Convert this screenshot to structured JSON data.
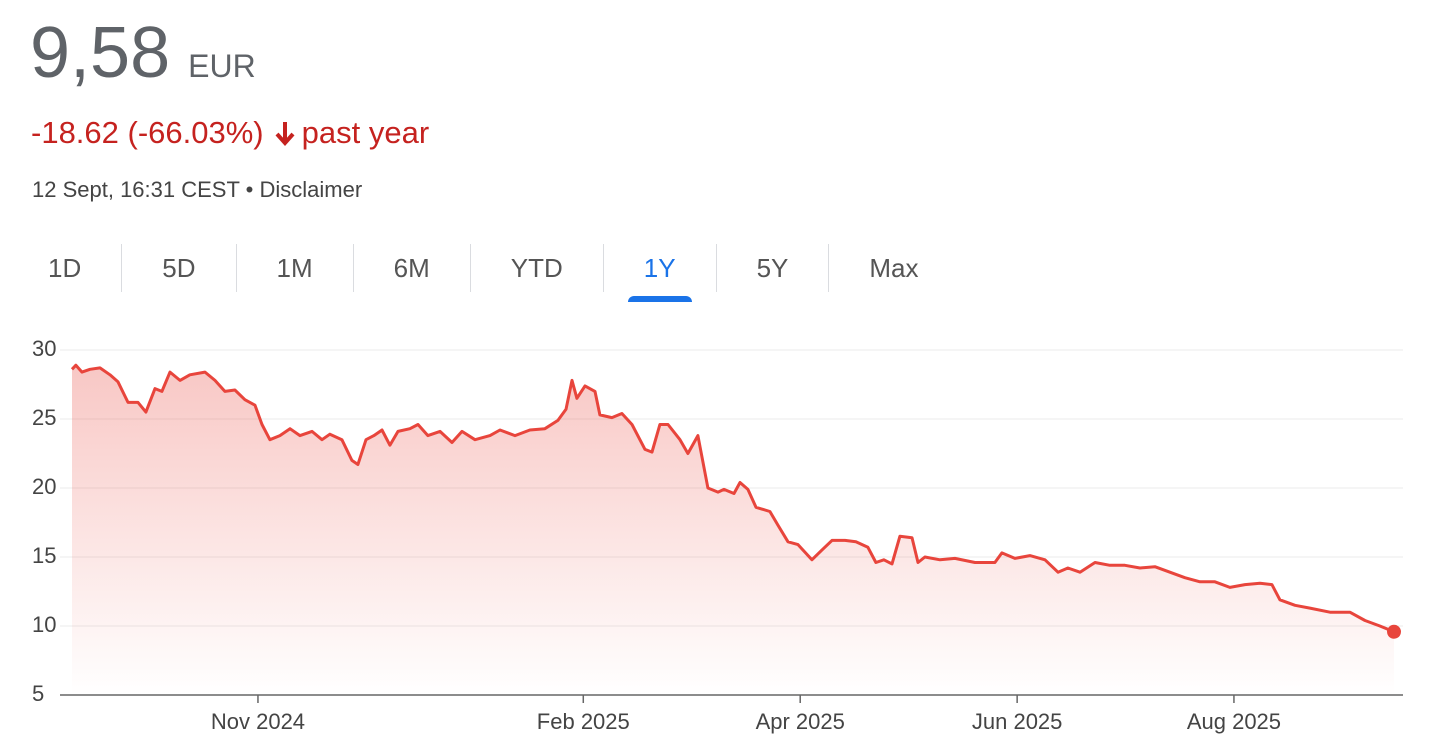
{
  "header": {
    "price": "9,58",
    "currency": "EUR",
    "change": "-18.62 (-66.03%)",
    "period": "past year",
    "timestamp": "12 Sept, 16:31 CEST",
    "separator": "•",
    "disclaimer": "Disclaimer"
  },
  "tabs": [
    {
      "label": "1D"
    },
    {
      "label": "5D"
    },
    {
      "label": "1M"
    },
    {
      "label": "6M"
    },
    {
      "label": "YTD"
    },
    {
      "label": "1Y",
      "selected": true
    },
    {
      "label": "5Y"
    },
    {
      "label": "Max"
    }
  ],
  "chart_data": {
    "type": "line",
    "color": "#e8453c",
    "grid": true,
    "x": [
      2024.6904,
      2024.6934,
      2024.6981,
      2024.7042,
      2024.7119,
      2024.7196,
      2024.7257,
      2024.7334,
      2024.7411,
      2024.7472,
      2024.7542,
      2024.7595,
      2024.7657,
      2024.7734,
      2024.781,
      2024.7926,
      2024.8003,
      2024.8079,
      2024.8156,
      2024.8233,
      2024.831,
      2024.8364,
      2024.8425,
      2024.8502,
      2024.8579,
      2024.8656,
      2024.8748,
      2024.8825,
      2024.8886,
      2024.8978,
      2024.9055,
      2024.9101,
      2024.9163,
      2024.9224,
      2024.9286,
      2024.9347,
      2024.9409,
      2024.9501,
      2024.9563,
      2024.9639,
      2024.9732,
      2024.9824,
      2024.9901,
      2025.0001,
      2025.0116,
      2025.0193,
      2025.0308,
      2025.0423,
      2025.0538,
      2025.0638,
      2025.07,
      2025.0746,
      2025.0784,
      2025.0846,
      2025.0923,
      2025.0961,
      2025.1053,
      2025.113,
      2025.1207,
      2025.1307,
      2025.1361,
      2025.1422,
      2025.1484,
      2025.1576,
      2025.1637,
      2025.1714,
      2025.1791,
      2025.1868,
      2025.1914,
      2025.1991,
      2025.2037,
      2025.2098,
      2025.216,
      2025.2267,
      2025.2329,
      2025.2406,
      2025.2483,
      2025.259,
      2025.2667,
      2025.2744,
      2025.2844,
      2025.2928,
      2025.302,
      2025.3082,
      2025.3143,
      2025.3205,
      2025.3266,
      2025.3359,
      2025.3405,
      2025.3458,
      2025.3574,
      2025.3689,
      2025.3843,
      2025.3996,
      2025.405,
      2025.415,
      2025.4265,
      2025.4381,
      2025.4481,
      2025.4557,
      2025.465,
      2025.4765,
      2025.488,
      2025.4995,
      2025.5111,
      2025.5226,
      2025.5341,
      2025.5456,
      2025.5572,
      2025.5687,
      2025.5802,
      2025.5918,
      2025.6033,
      2025.6125,
      2025.6186,
      2025.6302,
      2025.6417,
      2025.6571,
      2025.6724,
      2025.684,
      2025.6955,
      2025.7063
    ],
    "values": [
      28.6,
      28.9,
      28.4,
      28.6,
      28.7,
      28.2,
      27.7,
      26.2,
      26.2,
      25.5,
      27.2,
      27,
      28.4,
      27.8,
      28.2,
      28.4,
      27.8,
      27,
      27.1,
      26.4,
      26,
      24.6,
      23.5,
      23.8,
      24.3,
      23.8,
      24.1,
      23.5,
      23.9,
      23.5,
      22,
      21.7,
      23.5,
      23.8,
      24.2,
      23.1,
      24.1,
      24.3,
      24.6,
      23.8,
      24.1,
      23.3,
      24.1,
      23.5,
      23.8,
      24.2,
      23.8,
      24.2,
      24.3,
      24.9,
      25.7,
      27.8,
      26.5,
      27.4,
      27,
      25.3,
      25.1,
      25.4,
      24.6,
      22.8,
      22.6,
      24.6,
      24.6,
      23.5,
      22.5,
      23.8,
      20,
      19.7,
      19.9,
      19.6,
      20.4,
      19.9,
      18.6,
      18.3,
      17.3,
      16.1,
      15.9,
      14.8,
      15.5,
      16.2,
      16.2,
      16.1,
      15.7,
      14.6,
      14.8,
      14.5,
      16.5,
      16.4,
      14.6,
      15,
      14.8,
      14.9,
      14.6,
      14.6,
      15.3,
      14.9,
      15.1,
      14.8,
      13.9,
      14.2,
      13.9,
      14.6,
      14.4,
      14.4,
      14.2,
      14.3,
      13.9,
      13.5,
      13.2,
      13.2,
      12.8,
      13,
      13.1,
      13,
      11.9,
      11.5,
      11.3,
      11,
      11,
      10.4,
      10,
      9.58
    ],
    "xlim": [
      2024.6904,
      2025.7063
    ],
    "xticks": [
      {
        "value": 2024.8333,
        "label": "Nov 2024"
      },
      {
        "value": 2025.0833,
        "label": "Feb 2025"
      },
      {
        "value": 2025.25,
        "label": "Apr 2025"
      },
      {
        "value": 2025.4167,
        "label": "Jun 2025"
      },
      {
        "value": 2025.5833,
        "label": "Aug 2025"
      }
    ],
    "ylim": [
      5,
      30
    ],
    "yticks": [
      5,
      10,
      15,
      20,
      25,
      30
    ]
  }
}
